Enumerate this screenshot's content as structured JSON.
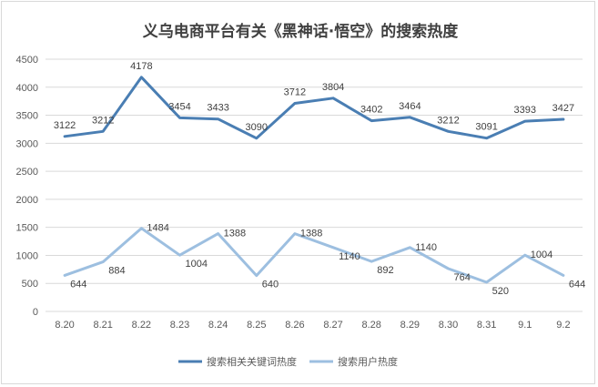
{
  "chart_data": {
    "type": "line",
    "title": "义乌电商平台有关《黑神话·悟空》的搜索热度",
    "categories": [
      "8.20",
      "8.21",
      "8.22",
      "8.23",
      "8.24",
      "8.25",
      "8.26",
      "8.27",
      "8.28",
      "8.29",
      "8.30",
      "8.31",
      "9.1",
      "9.2"
    ],
    "ylim": [
      0,
      4500
    ],
    "yticks": [
      "0",
      "500",
      "1000",
      "1500",
      "2000",
      "2500",
      "3000",
      "3500",
      "4000",
      "4500"
    ],
    "grid": true,
    "legend_position": "bottom",
    "series": [
      {
        "name": "搜索相关关键词热度",
        "color": "#4a7eb3",
        "values": [
          3122,
          3212,
          4178,
          3454,
          3433,
          3090,
          3712,
          3804,
          3402,
          3464,
          3212,
          3091,
          3393,
          3427
        ],
        "labels": [
          "3122",
          "3212",
          "4178",
          "3454",
          "3433",
          "3090",
          "3712",
          "3804",
          "3402",
          "3464",
          "3212",
          "3091",
          "3393",
          "3427"
        ]
      },
      {
        "name": "搜索用户热度",
        "color": "#9dbfe0",
        "values": [
          644,
          884,
          1484,
          1004,
          1388,
          640,
          1388,
          1140,
          892,
          1140,
          764,
          520,
          1004,
          644
        ],
        "labels": [
          "644",
          "884",
          "1484",
          "1004",
          "1388",
          "640",
          "1388",
          "1140",
          "892",
          "1140",
          "764",
          "520",
          "1004",
          "644"
        ]
      }
    ]
  }
}
